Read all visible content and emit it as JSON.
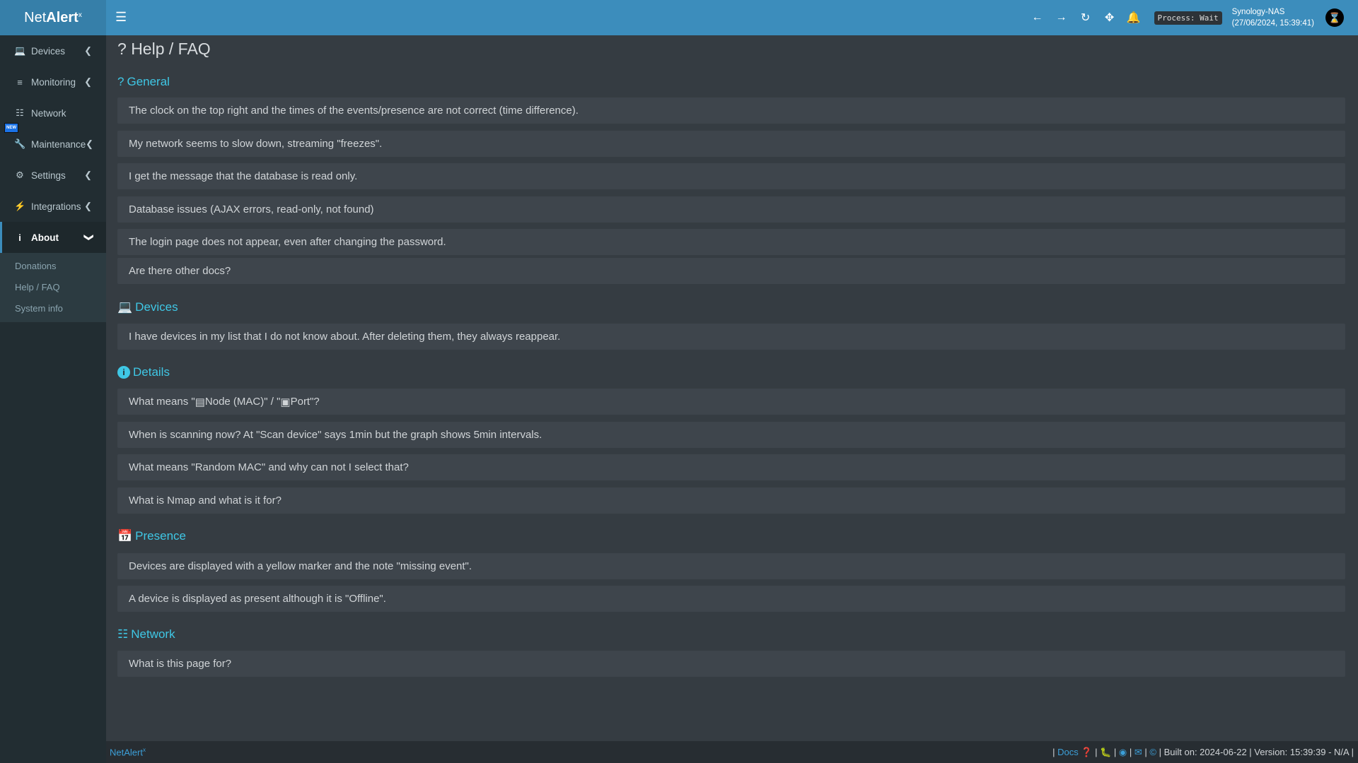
{
  "app": {
    "logo_pre": "Net",
    "logo_main": "Alert",
    "logo_sup": "x"
  },
  "topbar": {
    "process_label": "Process: Wait",
    "host": "Synology-NAS",
    "datetime": "(27/06/2024, 15:39:41)",
    "icons": [
      "arrow-left-icon",
      "arrow-right-icon",
      "refresh-icon",
      "move-icon",
      "bell-icon",
      "user-avatar-icon"
    ]
  },
  "sidebar": {
    "items": [
      {
        "label": "Devices",
        "icon": "laptop-icon"
      },
      {
        "label": "Monitoring",
        "icon": "chart-icon"
      },
      {
        "label": "Network",
        "icon": "sitemap-icon"
      },
      {
        "label": "Maintenance",
        "icon": "wrench-icon",
        "badge": "NEW"
      },
      {
        "label": "Settings",
        "icon": "gear-icon"
      },
      {
        "label": "Integrations",
        "icon": "plug-icon"
      },
      {
        "label": "About",
        "icon": "info-icon"
      }
    ],
    "about_sub": [
      "Donations",
      "Help / FAQ",
      "System info"
    ]
  },
  "page": {
    "title": "Help / FAQ"
  },
  "sections": {
    "general": {
      "title": "General",
      "items": [
        "The clock on the top right and the times of the events/presence are not correct (time difference).",
        "My network seems to slow down, streaming \"freezes\".",
        "I get the message that the database is read only.",
        "Database issues (AJAX errors, read-only, not found)",
        "The login page does not appear, even after changing the password.",
        "Are there other docs?"
      ]
    },
    "devices": {
      "title": "Devices",
      "items": [
        "I have devices in my list that I do not know about. After deleting them, they always reappear."
      ]
    },
    "details": {
      "title": "Details",
      "q1_a": "What means \"",
      "q1_b": " Node (MAC)\" / \"",
      "q1_c": " Port\"?",
      "items": [
        "When is scanning now? At \"Scan device\" says 1min but the graph shows 5min intervals.",
        "What means \"Random MAC\" and why can not I select that?",
        "What is Nmap and what is it for?"
      ]
    },
    "presence": {
      "title": "Presence",
      "items": [
        "Devices are displayed with a yellow marker and the note \"missing event\".",
        "A device is displayed as present although it is \"Offline\"."
      ]
    },
    "network": {
      "title": "Network",
      "items": [
        "What is this page for?"
      ]
    }
  },
  "footer": {
    "brand": "NetAlert",
    "brand_sup": "x",
    "docs": "Docs",
    "built": "Built on: 2024-06-22",
    "version": "Version: 15:39:39 - N/A"
  },
  "colors": {
    "topbar": "#3c8dbc",
    "sidebar": "#222d32",
    "accent": "#3fc7e5"
  }
}
